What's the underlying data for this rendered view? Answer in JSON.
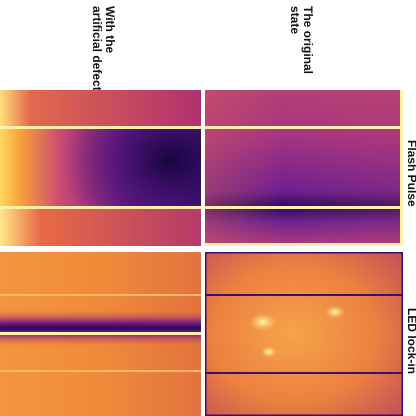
{
  "labels": {
    "col_left": "With the\nartificial defect",
    "col_right": "The original\nstate",
    "row_top": "Flash Pulse",
    "row_bottom": "LED lock-in"
  },
  "colors": {
    "background": "#ffffff",
    "separator": "#fff1a8",
    "led_right_lines": "#3a0f6e"
  },
  "panels": [
    {
      "name": "flash-pulse-with-defect",
      "method": "Flash Pulse",
      "state": "With the artificial defect"
    },
    {
      "name": "flash-pulse-original-state",
      "method": "Flash Pulse",
      "state": "The original state"
    },
    {
      "name": "led-lockin-with-defect",
      "method": "LED lock-in",
      "state": "With the artificial defect"
    },
    {
      "name": "led-lockin-original-state",
      "method": "LED lock-in",
      "state": "The original state"
    }
  ]
}
